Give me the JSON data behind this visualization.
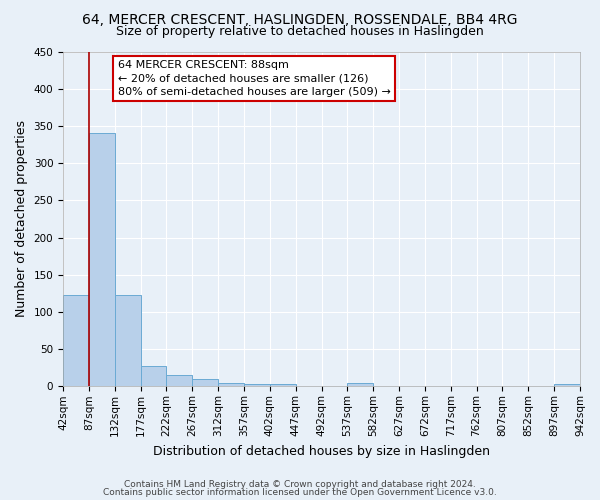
{
  "title": "64, MERCER CRESCENT, HASLINGDEN, ROSSENDALE, BB4 4RG",
  "subtitle": "Size of property relative to detached houses in Haslingden",
  "xlabel": "Distribution of detached houses by size in Haslingden",
  "ylabel": "Number of detached properties",
  "bin_labels": [
    "42sqm",
    "87sqm",
    "132sqm",
    "177sqm",
    "222sqm",
    "267sqm",
    "312sqm",
    "357sqm",
    "402sqm",
    "447sqm",
    "492sqm",
    "537sqm",
    "582sqm",
    "627sqm",
    "672sqm",
    "717sqm",
    "762sqm",
    "807sqm",
    "852sqm",
    "897sqm",
    "942sqm"
  ],
  "bin_edges": [
    42,
    87,
    132,
    177,
    222,
    267,
    312,
    357,
    402,
    447,
    492,
    537,
    582,
    627,
    672,
    717,
    762,
    807,
    852,
    897,
    942
  ],
  "bar_heights": [
    123,
    340,
    123,
    28,
    15,
    10,
    5,
    3,
    3,
    0,
    0,
    5,
    0,
    0,
    0,
    0,
    0,
    0,
    0,
    3
  ],
  "bar_color": "#b8d0ea",
  "bar_edge_color": "#6aaad4",
  "property_size": 88,
  "vline_color": "#aa0000",
  "ylim": [
    0,
    450
  ],
  "yticks": [
    0,
    50,
    100,
    150,
    200,
    250,
    300,
    350,
    400,
    450
  ],
  "annotation_line1": "64 MERCER CRESCENT: 88sqm",
  "annotation_line2": "← 20% of detached houses are smaller (126)",
  "annotation_line3": "80% of semi-detached houses are larger (509) →",
  "annotation_box_color": "#ffffff",
  "annotation_box_edge_color": "#cc0000",
  "footnote1": "Contains HM Land Registry data © Crown copyright and database right 2024.",
  "footnote2": "Contains public sector information licensed under the Open Government Licence v3.0.",
  "bg_color": "#e8f0f8",
  "grid_color": "#ffffff",
  "title_fontsize": 10,
  "subtitle_fontsize": 9,
  "axis_label_fontsize": 9,
  "tick_fontsize": 7.5,
  "annotation_fontsize": 8,
  "footnote_fontsize": 6.5
}
